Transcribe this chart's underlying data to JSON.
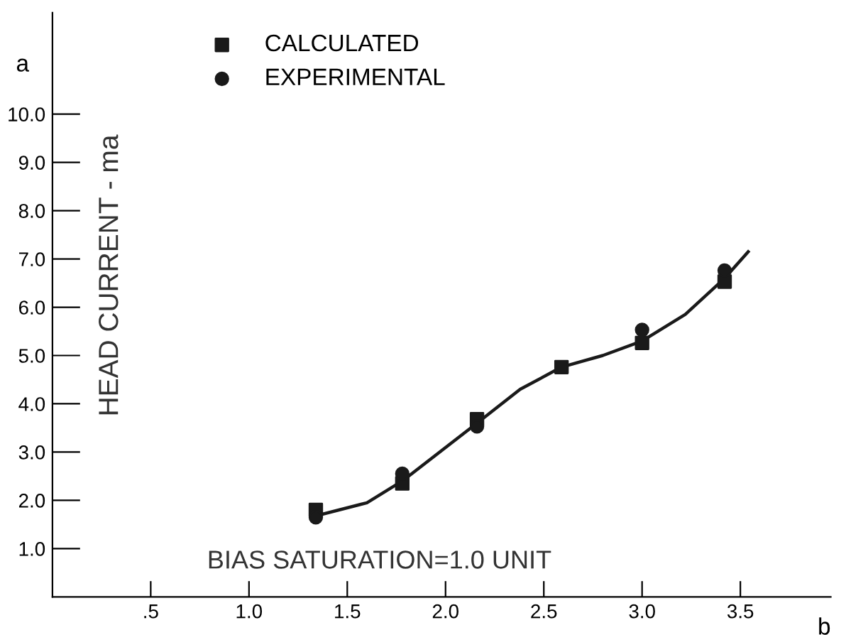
{
  "chart_data": {
    "type": "scatter",
    "xlabel": "b",
    "ylabel": "a",
    "y2label": "HEAD CURRENT - ma",
    "annotations": [
      "BIAS SATURATION=1.0 UNIT"
    ],
    "xlim": [
      0,
      3.96
    ],
    "ylim": [
      0,
      12.1
    ],
    "xticks": [
      {
        "value": 0.5,
        "label": ".5"
      },
      {
        "value": 1.0,
        "label": "1.0"
      },
      {
        "value": 1.5,
        "label": "1.5"
      },
      {
        "value": 2.0,
        "label": "2.0"
      },
      {
        "value": 2.5,
        "label": "2.5"
      },
      {
        "value": 3.0,
        "label": "3.0"
      },
      {
        "value": 3.5,
        "label": "3.5"
      }
    ],
    "yticks": [
      {
        "value": 1,
        "label": "1.0"
      },
      {
        "value": 2,
        "label": "2.0"
      },
      {
        "value": 3,
        "label": "3.0"
      },
      {
        "value": 4,
        "label": "4.0"
      },
      {
        "value": 5,
        "label": "5.0"
      },
      {
        "value": 6,
        "label": "6.0"
      },
      {
        "value": 7,
        "label": "7.0"
      },
      {
        "value": 8,
        "label": "8.0"
      },
      {
        "value": 9,
        "label": "9.0"
      },
      {
        "value": 10,
        "label": "10.0"
      }
    ],
    "x": [
      1.34,
      1.78,
      2.16,
      2.59,
      3.0,
      3.42
    ],
    "series": [
      {
        "type": "line",
        "color": "#1a1a1a",
        "marker": "none",
        "line_style": "solid",
        "x": [
          1.38,
          1.6,
          1.78,
          1.97,
          2.16,
          2.38,
          2.59,
          2.8,
          3.0,
          3.22,
          3.42,
          3.54
        ],
        "values": [
          1.72,
          1.95,
          2.4,
          3.0,
          3.6,
          4.3,
          4.76,
          5.0,
          5.3,
          5.85,
          6.6,
          7.15
        ]
      },
      {
        "name": "CALCULATED",
        "color": "#1a1a1a",
        "marker": "square",
        "values": [
          1.8,
          2.35,
          3.68,
          4.76,
          5.26,
          6.53
        ]
      },
      {
        "name": "EXPERIMENTAL",
        "color": "#1a1a1a",
        "marker": "circle",
        "values": [
          1.65,
          2.55,
          3.53,
          null,
          5.53,
          6.76
        ]
      }
    ],
    "legend": "top left",
    "grid": false
  }
}
